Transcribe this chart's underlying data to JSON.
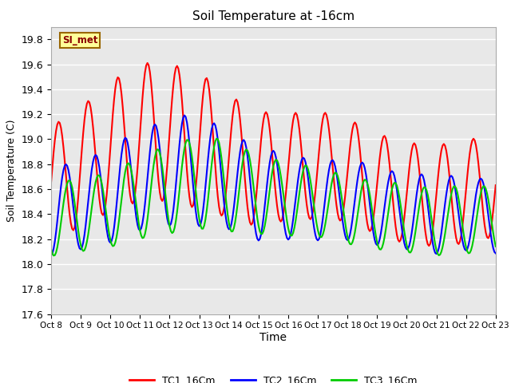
{
  "title": "Soil Temperature at -16cm",
  "xlabel": "Time",
  "ylabel": "Soil Temperature (C)",
  "ylim": [
    17.6,
    19.9
  ],
  "xlim_days": [
    0,
    15
  ],
  "background_color": "#ffffff",
  "plot_bg_color": "#e8e8e8",
  "grid_color": "#ffffff",
  "colors": {
    "TC1": "#ff0000",
    "TC2": "#0000ff",
    "TC3": "#00cc00"
  },
  "legend_labels": [
    "TC1_16Cm",
    "TC2_16Cm",
    "TC3_16Cm"
  ],
  "annotation_text": "SI_met",
  "x_tick_labels": [
    "Oct 8",
    "Oct 9",
    "Oct 10",
    "Oct 11",
    "Oct 12",
    "Oct 13",
    "Oct 14",
    "Oct 15",
    "Oct 16",
    "Oct 17",
    "Oct 18",
    "Oct 19",
    "Oct 20",
    "Oct 21",
    "Oct 22",
    "Oct 23"
  ],
  "yticks": [
    17.6,
    17.8,
    18.0,
    18.2,
    18.4,
    18.6,
    18.8,
    19.0,
    19.2,
    19.4,
    19.6,
    19.8
  ],
  "linewidth": 1.5
}
